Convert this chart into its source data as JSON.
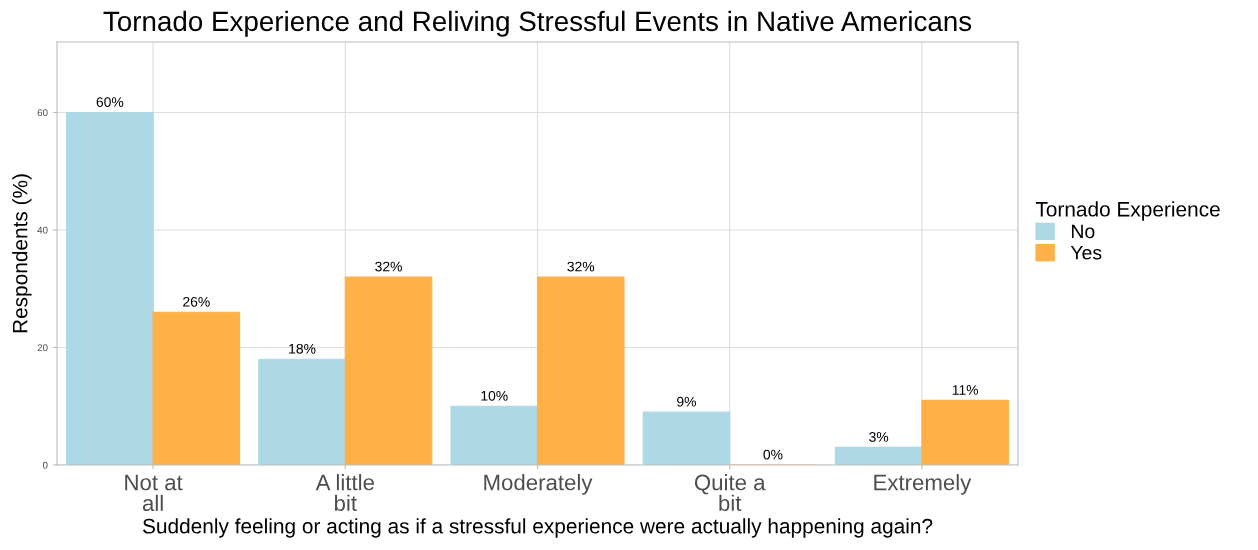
{
  "chart_data": {
    "type": "bar",
    "title": "Tornado Experience and Reliving Stressful Events in Native Americans",
    "xlabel": "Suddenly feeling or acting as if a stressful experience were actually happening again?",
    "ylabel": "Respondents (%)",
    "legend_title": "Tornado Experience",
    "categories": [
      "Not at\nall",
      "A little\nbit",
      "Moderately",
      "Quite a\nbit",
      "Extremely"
    ],
    "series": [
      {
        "name": "No",
        "color": "#add8e6",
        "values": [
          60,
          18,
          10,
          9,
          3
        ],
        "value_labels": [
          "60%",
          "18%",
          "10%",
          "9%",
          "3%"
        ]
      },
      {
        "name": "Yes",
        "color": "#ffb148",
        "values": [
          26,
          32,
          32,
          0,
          11
        ],
        "value_labels": [
          "26%",
          "32%",
          "32%",
          "0%",
          "11%"
        ]
      }
    ],
    "ylim": [
      0,
      72
    ],
    "yticks": [
      0,
      20,
      40,
      60
    ],
    "grid": true,
    "legend": "right"
  }
}
